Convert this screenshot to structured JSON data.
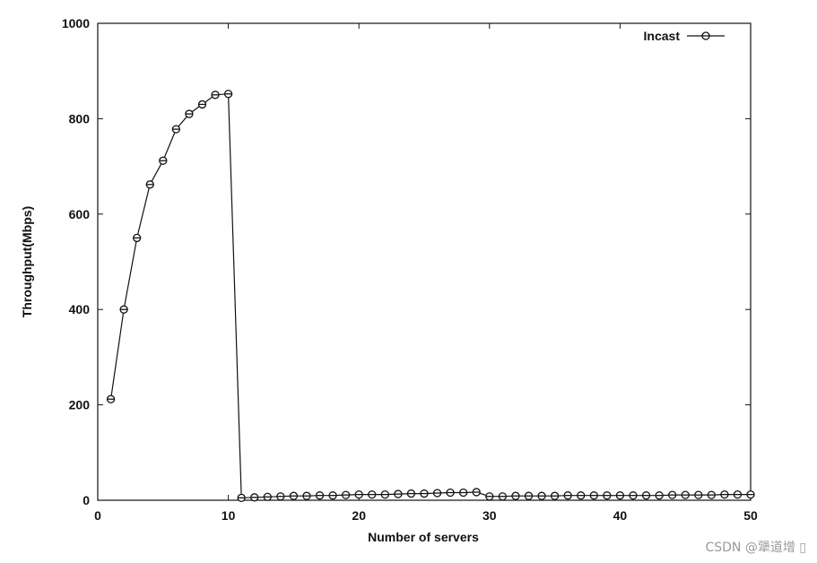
{
  "chart_data": {
    "type": "line",
    "title": "",
    "xlabel": "Number of servers",
    "ylabel": "Throughput(Mbps)",
    "xlim": [
      0,
      50
    ],
    "ylim": [
      0,
      1000
    ],
    "xticks": [
      0,
      10,
      20,
      30,
      40,
      50
    ],
    "yticks": [
      0,
      200,
      400,
      600,
      800,
      1000
    ],
    "grid": false,
    "legend_position": "top-right",
    "series": [
      {
        "name": "Incast",
        "marker": "circle",
        "color": "#111111",
        "x": [
          1,
          2,
          3,
          4,
          5,
          6,
          7,
          8,
          9,
          10,
          11,
          12,
          13,
          14,
          15,
          16,
          17,
          18,
          19,
          20,
          21,
          22,
          23,
          24,
          25,
          26,
          27,
          28,
          29,
          30,
          31,
          32,
          33,
          34,
          35,
          36,
          37,
          38,
          39,
          40,
          41,
          42,
          43,
          44,
          45,
          46,
          47,
          48,
          49,
          50
        ],
        "y": [
          212,
          400,
          550,
          662,
          712,
          778,
          810,
          830,
          850,
          852,
          5,
          6,
          7,
          8,
          9,
          9,
          10,
          10,
          11,
          12,
          12,
          12,
          13,
          14,
          14,
          15,
          16,
          16,
          17,
          8,
          8,
          9,
          9,
          9,
          9,
          10,
          10,
          10,
          10,
          10,
          10,
          10,
          10,
          11,
          11,
          11,
          11,
          12,
          12,
          12
        ]
      }
    ]
  },
  "watermark": "CSDN @犟道增 ▯"
}
